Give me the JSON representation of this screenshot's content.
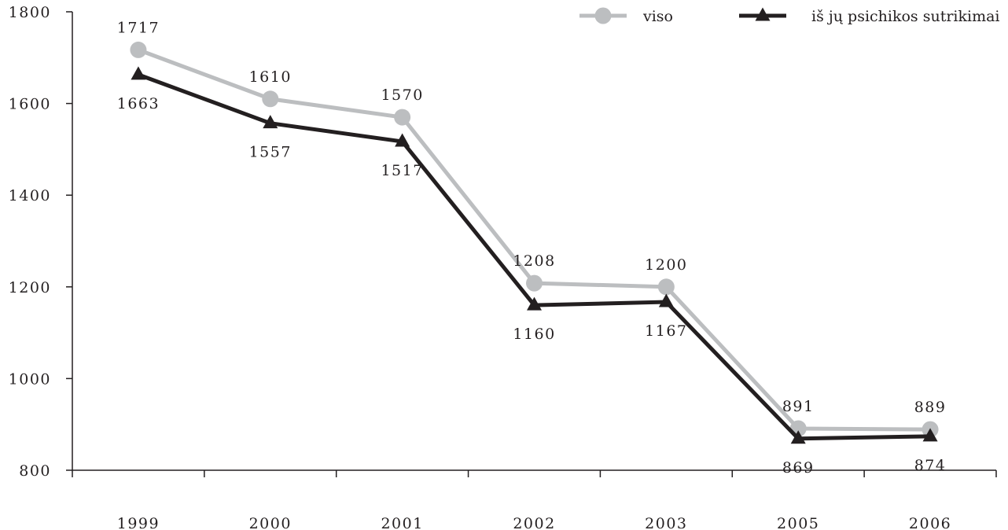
{
  "chart_data": {
    "type": "line",
    "categories": [
      "1999",
      "2000",
      "2001",
      "2002",
      "2003",
      "2005",
      "2006"
    ],
    "series": [
      {
        "name": "viso",
        "values": [
          1717,
          1610,
          1570,
          1208,
          1200,
          891,
          889
        ],
        "color": "#bcbec0",
        "marker": "circle",
        "label_position": "above"
      },
      {
        "name": "iš jų psichikos sutrikimai",
        "values": [
          1663,
          1557,
          1517,
          1160,
          1167,
          869,
          874
        ],
        "color": "#231f20",
        "marker": "triangle",
        "label_position": "below"
      }
    ],
    "yticks": [
      800,
      1000,
      1200,
      1400,
      1600,
      1800
    ],
    "ylim": [
      800,
      1800
    ],
    "title": "",
    "xlabel": "",
    "ylabel": "",
    "grid": false,
    "legend_position": "top-right"
  }
}
